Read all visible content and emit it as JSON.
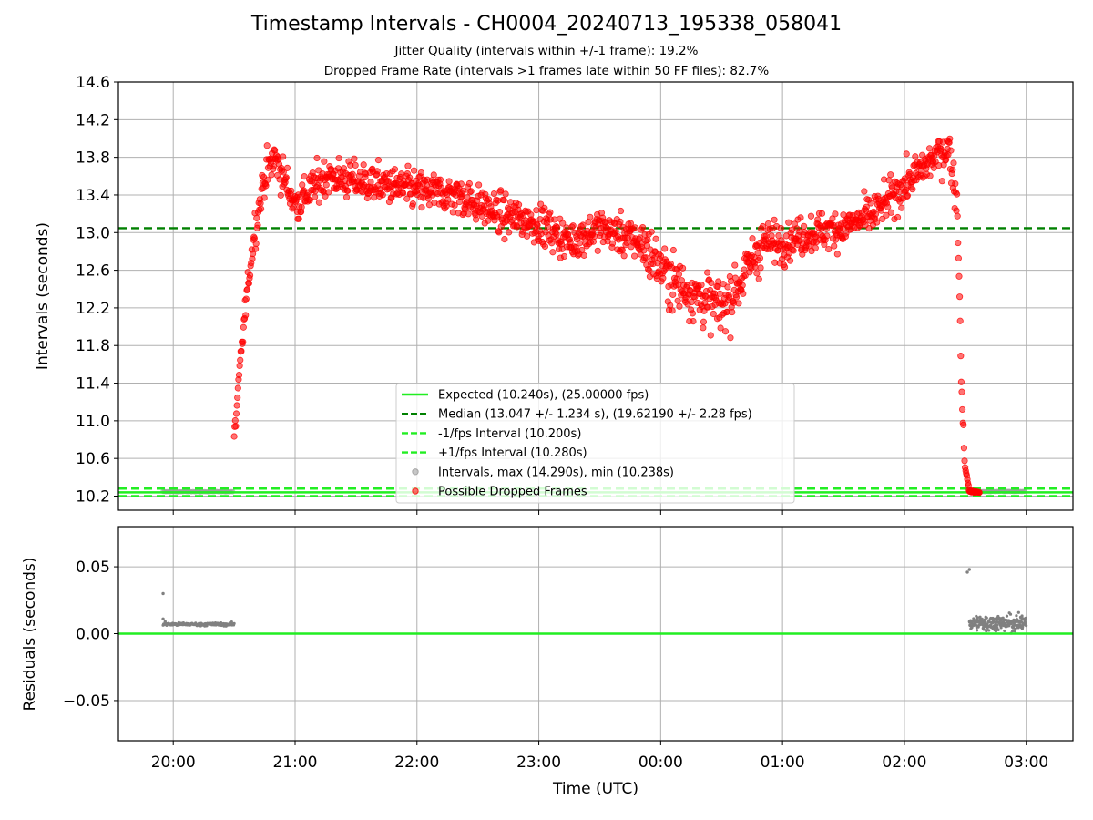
{
  "title": "Timestamp Intervals - CH0004_20240713_195338_058041",
  "subtitles": [
    "Jitter Quality (intervals within +/-1 frame): 19.2%",
    "Dropped Frame Rate (intervals >1 frames late within 50 FF files): 82.7%"
  ],
  "colors": {
    "expected": "#22ee22",
    "median": "#008000",
    "fps_interval": "#22ee22",
    "intervals": "#999999",
    "dropped": "#ff0000",
    "residuals": "#808080",
    "grid": "#b0b0b0"
  },
  "chart_data": [
    {
      "type": "scatter",
      "panel": "intervals",
      "title": "",
      "xlabel": "",
      "ylabel": "Intervals (seconds)",
      "ylim": [
        10.05,
        14.6
      ],
      "xlim": [
        "19:33",
        "03:23"
      ],
      "yticks": [
        "10.2",
        "10.6",
        "11.0",
        "11.4",
        "11.8",
        "12.2",
        "12.6",
        "13.0",
        "13.4",
        "13.8",
        "14.2",
        "14.6"
      ],
      "xticks": [
        "20:00",
        "21:00",
        "22:00",
        "23:00",
        "00:00",
        "01:00",
        "02:00",
        "03:00"
      ],
      "grid": true,
      "legend_position": "lower-center",
      "reference_lines": [
        {
          "name": "Expected (10.240s), (25.00000 fps)",
          "y": 10.24,
          "style": "solid",
          "color_key": "expected"
        },
        {
          "name": "Median (13.047 +/- 1.234 s), (19.62190 +/- 2.28 fps)",
          "y": 13.047,
          "style": "dashed",
          "color_key": "median"
        },
        {
          "name": "-1/fps Interval (10.200s)",
          "y": 10.2,
          "style": "dashed",
          "color_key": "fps_interval"
        },
        {
          "name": "+1/fps Interval (10.280s)",
          "y": 10.28,
          "style": "dashed",
          "color_key": "fps_interval"
        }
      ],
      "series": [
        {
          "name": "Intervals, max (14.290s), min (10.238s)",
          "color_key": "intervals",
          "marker": "dot",
          "segments": [
            {
              "x_start": "19:55",
              "x_end": "20:30",
              "y": 10.247
            },
            {
              "x_start": "02:32",
              "x_end": "03:00",
              "y": 10.25
            }
          ]
        },
        {
          "name": "Possible Dropped Frames",
          "color_key": "dropped",
          "marker": "dot",
          "trend": [
            {
              "x": "20:30",
              "y": 10.8
            },
            {
              "x": "20:33",
              "y": 11.6
            },
            {
              "x": "20:36",
              "y": 12.3
            },
            {
              "x": "20:40",
              "y": 13.0
            },
            {
              "x": "20:45",
              "y": 13.6
            },
            {
              "x": "20:50",
              "y": 13.8
            },
            {
              "x": "21:00",
              "y": 13.3
            },
            {
              "x": "21:15",
              "y": 13.6
            },
            {
              "x": "21:30",
              "y": 13.55
            },
            {
              "x": "22:00",
              "y": 13.45
            },
            {
              "x": "22:20",
              "y": 13.4
            },
            {
              "x": "22:40",
              "y": 13.2
            },
            {
              "x": "23:00",
              "y": 13.1
            },
            {
              "x": "23:15",
              "y": 12.9
            },
            {
              "x": "23:30",
              "y": 13.05
            },
            {
              "x": "23:50",
              "y": 12.9
            },
            {
              "x": "00:05",
              "y": 12.5
            },
            {
              "x": "00:20",
              "y": 12.3
            },
            {
              "x": "00:30",
              "y": 12.2
            },
            {
              "x": "00:40",
              "y": 12.5
            },
            {
              "x": "00:50",
              "y": 12.9
            },
            {
              "x": "01:00",
              "y": 12.9
            },
            {
              "x": "01:15",
              "y": 13.0
            },
            {
              "x": "01:30",
              "y": 13.05
            },
            {
              "x": "01:45",
              "y": 13.2
            },
            {
              "x": "02:00",
              "y": 13.5
            },
            {
              "x": "02:15",
              "y": 13.8
            },
            {
              "x": "02:22",
              "y": 13.9
            },
            {
              "x": "02:26",
              "y": 13.3
            },
            {
              "x": "02:27",
              "y": 12.5
            },
            {
              "x": "02:28",
              "y": 11.5
            },
            {
              "x": "02:29",
              "y": 10.9
            },
            {
              "x": "02:30",
              "y": 10.5
            },
            {
              "x": "02:32",
              "y": 10.25
            },
            {
              "x": "02:37",
              "y": 10.24
            }
          ]
        }
      ]
    },
    {
      "type": "scatter",
      "panel": "residuals",
      "title": "",
      "xlabel": "Time (UTC)",
      "ylabel": "Residuals (seconds)",
      "ylim": [
        -0.08,
        0.08
      ],
      "xlim": [
        "19:33",
        "03:23"
      ],
      "yticks": [
        "−0.05",
        "0.00",
        "0.05"
      ],
      "xticks": [
        "20:00",
        "21:00",
        "22:00",
        "23:00",
        "00:00",
        "01:00",
        "02:00",
        "03:00"
      ],
      "grid": true,
      "reference_lines": [
        {
          "y": 0.0,
          "style": "solid",
          "color_key": "expected"
        }
      ],
      "series": [
        {
          "color_key": "residuals",
          "marker": "dot",
          "points": [
            {
              "x": "19:55",
              "y": 0.03
            },
            {
              "x": "19:55",
              "y": 0.011
            },
            {
              "x": "19:56",
              "y": 0.009
            },
            {
              "x": "02:31",
              "y": 0.046
            },
            {
              "x": "02:32",
              "y": 0.048
            }
          ],
          "segments": [
            {
              "x_start": "19:55",
              "x_end": "20:30",
              "y": 0.007,
              "spread": 0.001
            },
            {
              "x_start": "02:32",
              "x_end": "03:00",
              "y": 0.008,
              "spread": 0.005
            }
          ]
        }
      ]
    }
  ]
}
